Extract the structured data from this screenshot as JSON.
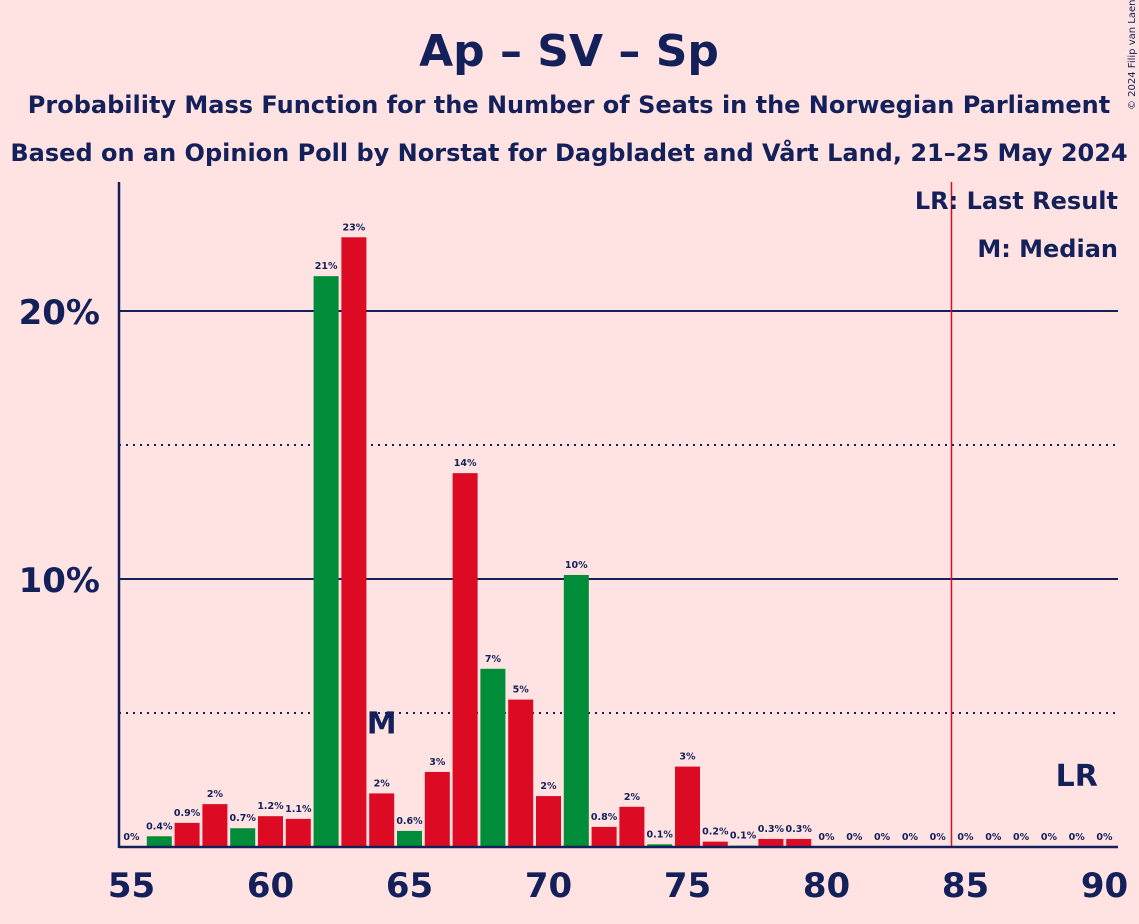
{
  "chart_data": {
    "type": "bar",
    "title": "Ap – SV – Sp",
    "subtitle": "Probability Mass Function for the Number of Seats in the Norwegian Parliament",
    "subtitle2": "Based on an Opinion Poll by Norstat for Dagbladet and Vårt Land, 21–25 May 2024",
    "copyright": "© 2024 Filip van Laenen",
    "legend": {
      "last_result": "LR: Last Result",
      "median": "M: Median"
    },
    "median_marker": "M",
    "median_seat": 64,
    "last_result_marker": "LR",
    "last_result_seat": 85,
    "xlim": [
      55,
      90
    ],
    "ylim": [
      0,
      25
    ],
    "x_ticks": [
      "55",
      "60",
      "65",
      "70",
      "75",
      "80",
      "85",
      "90"
    ],
    "y_ticks": [
      {
        "value": 10,
        "label": "10%"
      },
      {
        "value": 20,
        "label": "20%"
      }
    ],
    "dotted_lines": [
      5,
      15
    ],
    "colors": {
      "green": "#008c38",
      "red": "#dc0a23",
      "axis": "#13205a",
      "last_result_line": "#dc0a23",
      "background": "#ffe2e2"
    },
    "bars": [
      {
        "seats": 55,
        "value": 0.0,
        "label": "0%",
        "color": "green"
      },
      {
        "seats": 56,
        "value": 0.4,
        "label": "0.4%",
        "color": "green"
      },
      {
        "seats": 57,
        "value": 0.9,
        "label": "0.9%",
        "color": "red"
      },
      {
        "seats": 58,
        "value": 1.6,
        "label": "2%",
        "color": "red"
      },
      {
        "seats": 59,
        "value": 0.7,
        "label": "0.7%",
        "color": "green"
      },
      {
        "seats": 60,
        "value": 1.15,
        "label": "1.2%",
        "color": "red"
      },
      {
        "seats": 61,
        "value": 1.05,
        "label": "1.1%",
        "color": "red"
      },
      {
        "seats": 62,
        "value": 21.3,
        "label": "21%",
        "color": "green"
      },
      {
        "seats": 63,
        "value": 22.75,
        "label": "23%",
        "color": "red"
      },
      {
        "seats": 64,
        "value": 2.0,
        "label": "2%",
        "color": "red"
      },
      {
        "seats": 65,
        "value": 0.6,
        "label": "0.6%",
        "color": "green"
      },
      {
        "seats": 66,
        "value": 2.8,
        "label": "3%",
        "color": "red"
      },
      {
        "seats": 67,
        "value": 13.95,
        "label": "14%",
        "color": "red"
      },
      {
        "seats": 68,
        "value": 6.65,
        "label": "7%",
        "color": "green"
      },
      {
        "seats": 69,
        "value": 5.5,
        "label": "5%",
        "color": "red"
      },
      {
        "seats": 70,
        "value": 1.9,
        "label": "2%",
        "color": "red"
      },
      {
        "seats": 71,
        "value": 10.15,
        "label": "10%",
        "color": "green"
      },
      {
        "seats": 72,
        "value": 0.75,
        "label": "0.8%",
        "color": "red"
      },
      {
        "seats": 73,
        "value": 1.5,
        "label": "2%",
        "color": "red"
      },
      {
        "seats": 74,
        "value": 0.1,
        "label": "0.1%",
        "color": "green"
      },
      {
        "seats": 75,
        "value": 3.0,
        "label": "3%",
        "color": "red"
      },
      {
        "seats": 76,
        "value": 0.2,
        "label": "0.2%",
        "color": "red"
      },
      {
        "seats": 77,
        "value": 0.05,
        "label": "0.1%",
        "color": "green"
      },
      {
        "seats": 78,
        "value": 0.3,
        "label": "0.3%",
        "color": "red"
      },
      {
        "seats": 79,
        "value": 0.3,
        "label": "0.3%",
        "color": "red"
      },
      {
        "seats": 80,
        "value": 0.0,
        "label": "0%",
        "color": "green"
      },
      {
        "seats": 81,
        "value": 0.0,
        "label": "0%",
        "color": "red"
      },
      {
        "seats": 82,
        "value": 0.0,
        "label": "0%",
        "color": "red"
      },
      {
        "seats": 83,
        "value": 0.0,
        "label": "0%",
        "color": "green"
      },
      {
        "seats": 84,
        "value": 0.0,
        "label": "0%",
        "color": "red"
      },
      {
        "seats": 85,
        "value": 0.0,
        "label": "0%",
        "color": "red"
      },
      {
        "seats": 86,
        "value": 0.0,
        "label": "0%",
        "color": "green"
      },
      {
        "seats": 87,
        "value": 0.0,
        "label": "0%",
        "color": "red"
      },
      {
        "seats": 88,
        "value": 0.0,
        "label": "0%",
        "color": "red"
      },
      {
        "seats": 89,
        "value": 0.0,
        "label": "0%",
        "color": "green"
      },
      {
        "seats": 90,
        "value": 0.0,
        "label": "0%",
        "color": "red"
      }
    ]
  }
}
